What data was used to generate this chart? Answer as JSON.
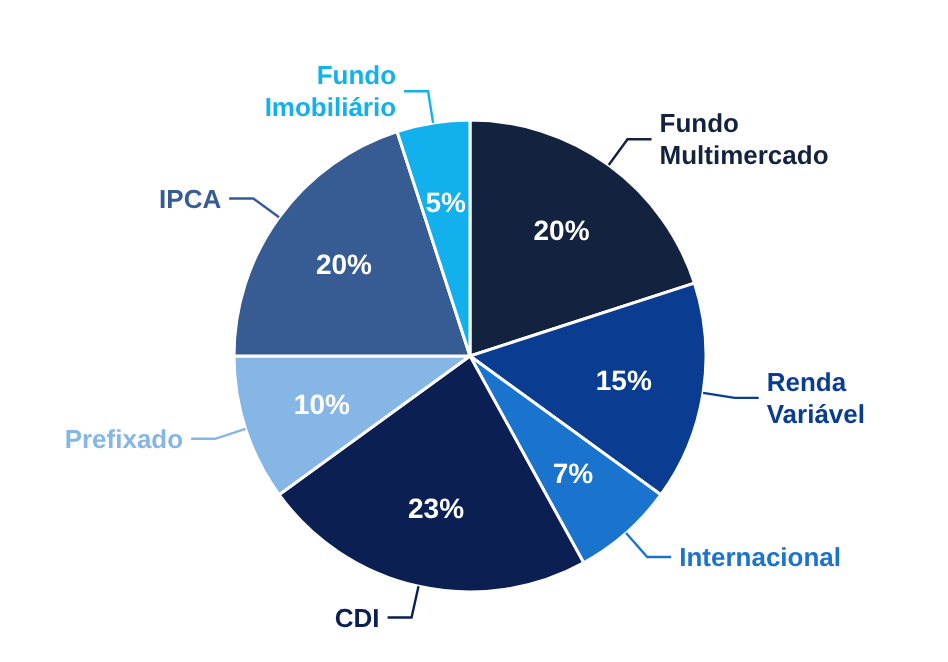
{
  "chart_data": {
    "type": "pie",
    "categories": [
      "Fundo Multimercado",
      "Renda Variável",
      "Internacional",
      "CDI",
      "Prefixado",
      "IPCA",
      "Fundo Imobiliário"
    ],
    "values": [
      20,
      15,
      7,
      23,
      10,
      20,
      5
    ],
    "colors": [
      "#13233f",
      "#0a3d92",
      "#1a73cc",
      "#0b1f52",
      "#86b6e6",
      "#365c93",
      "#12b0ec"
    ],
    "value_labels": [
      "20%",
      "15%",
      "7%",
      "23%",
      "10%",
      "20%",
      "5%"
    ]
  }
}
